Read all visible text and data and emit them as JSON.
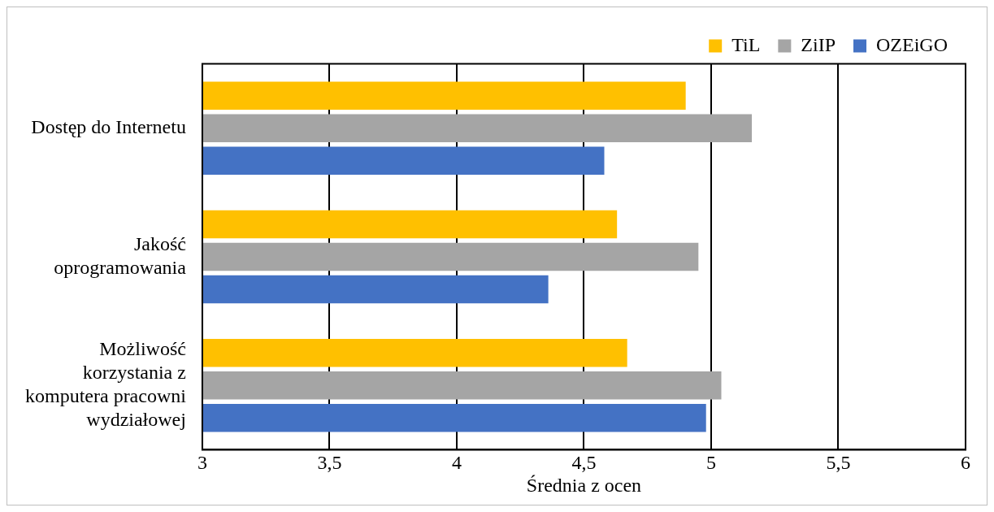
{
  "chart_data": {
    "type": "bar",
    "orientation": "horizontal",
    "xlabel": "Średnia z ocen",
    "categories": [
      "Dostęp do Internetu",
      "Jakość oprogramowania",
      "Możliwość korzystania z komputera pracowni wydziałowej"
    ],
    "series": [
      {
        "name": "TiL",
        "color": "#ffc000",
        "values": [
          4.9,
          4.63,
          4.67
        ]
      },
      {
        "name": "ZiIP",
        "color": "#a5a5a5",
        "values": [
          5.16,
          4.95,
          5.04
        ]
      },
      {
        "name": "OZEiGO",
        "color": "#4472c4",
        "values": [
          4.58,
          4.36,
          4.98
        ]
      }
    ],
    "xlim": [
      3,
      6
    ],
    "xticks": [
      3,
      {
        "value": 3.5,
        "label": "3,5"
      },
      4,
      {
        "value": 4.5,
        "label": "4,5"
      },
      5,
      {
        "value": 5.5,
        "label": "5,5"
      },
      6
    ],
    "grid": "x",
    "legend": "top right"
  }
}
